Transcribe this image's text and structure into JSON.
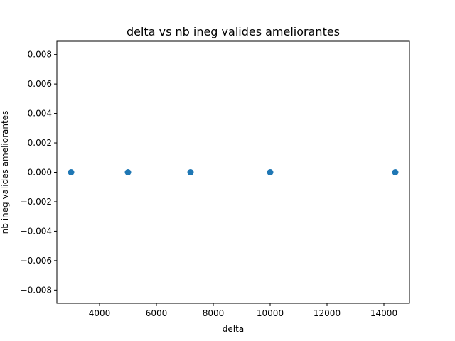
{
  "chart_data": {
    "type": "scatter",
    "title": "delta   vs   nb ineg valides ameliorantes",
    "xlabel": "delta",
    "ylabel": "nb ineg valides ameliorantes",
    "xlim": [
      2500,
      14900
    ],
    "ylim": [
      -0.0089,
      0.0089
    ],
    "x_ticks": [
      4000,
      6000,
      8000,
      10000,
      12000,
      14000
    ],
    "y_ticks": [
      -0.008,
      -0.006,
      -0.004,
      -0.002,
      0.0,
      0.002,
      0.004,
      0.006,
      0.008
    ],
    "x_tick_labels": [
      "4000",
      "6000",
      "8000",
      "10000",
      "12000",
      "14000"
    ],
    "y_tick_labels": [
      "−0.008",
      "−0.006",
      "−0.004",
      "−0.002",
      "0.000",
      "0.002",
      "0.004",
      "0.006",
      "0.008"
    ],
    "grid": false,
    "legend": "none",
    "marker_color": "#1f77b4",
    "points": [
      {
        "x": 3000,
        "y": 0
      },
      {
        "x": 5000,
        "y": 0
      },
      {
        "x": 7200,
        "y": 0
      },
      {
        "x": 10000,
        "y": 0
      },
      {
        "x": 14400,
        "y": 0
      }
    ]
  }
}
